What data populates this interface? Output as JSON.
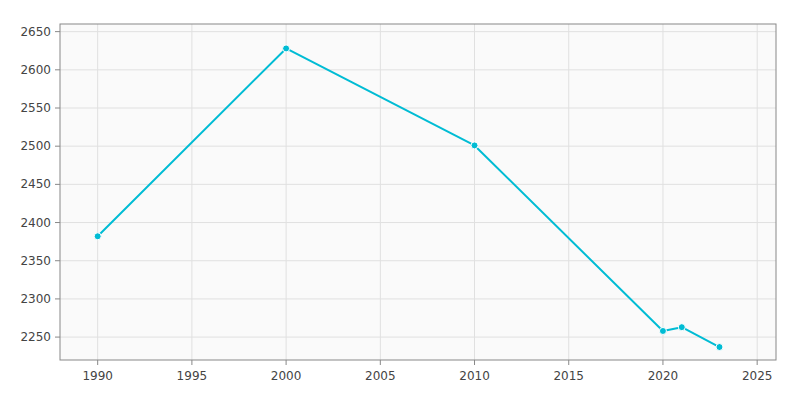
{
  "chart_data": {
    "type": "line",
    "x": [
      1990,
      2000,
      2010,
      2020,
      2021,
      2023
    ],
    "values": [
      2382,
      2628,
      2501,
      2258,
      2263,
      2237
    ],
    "color": "#00bcd4",
    "marker": "circle",
    "xlim": [
      1988,
      2026
    ],
    "ylim": [
      2220,
      2660
    ],
    "xticks": [
      1990,
      1995,
      2000,
      2005,
      2010,
      2015,
      2020,
      2025
    ],
    "yticks": [
      2250,
      2300,
      2350,
      2400,
      2450,
      2500,
      2550,
      2600,
      2650
    ],
    "grid": true
  }
}
